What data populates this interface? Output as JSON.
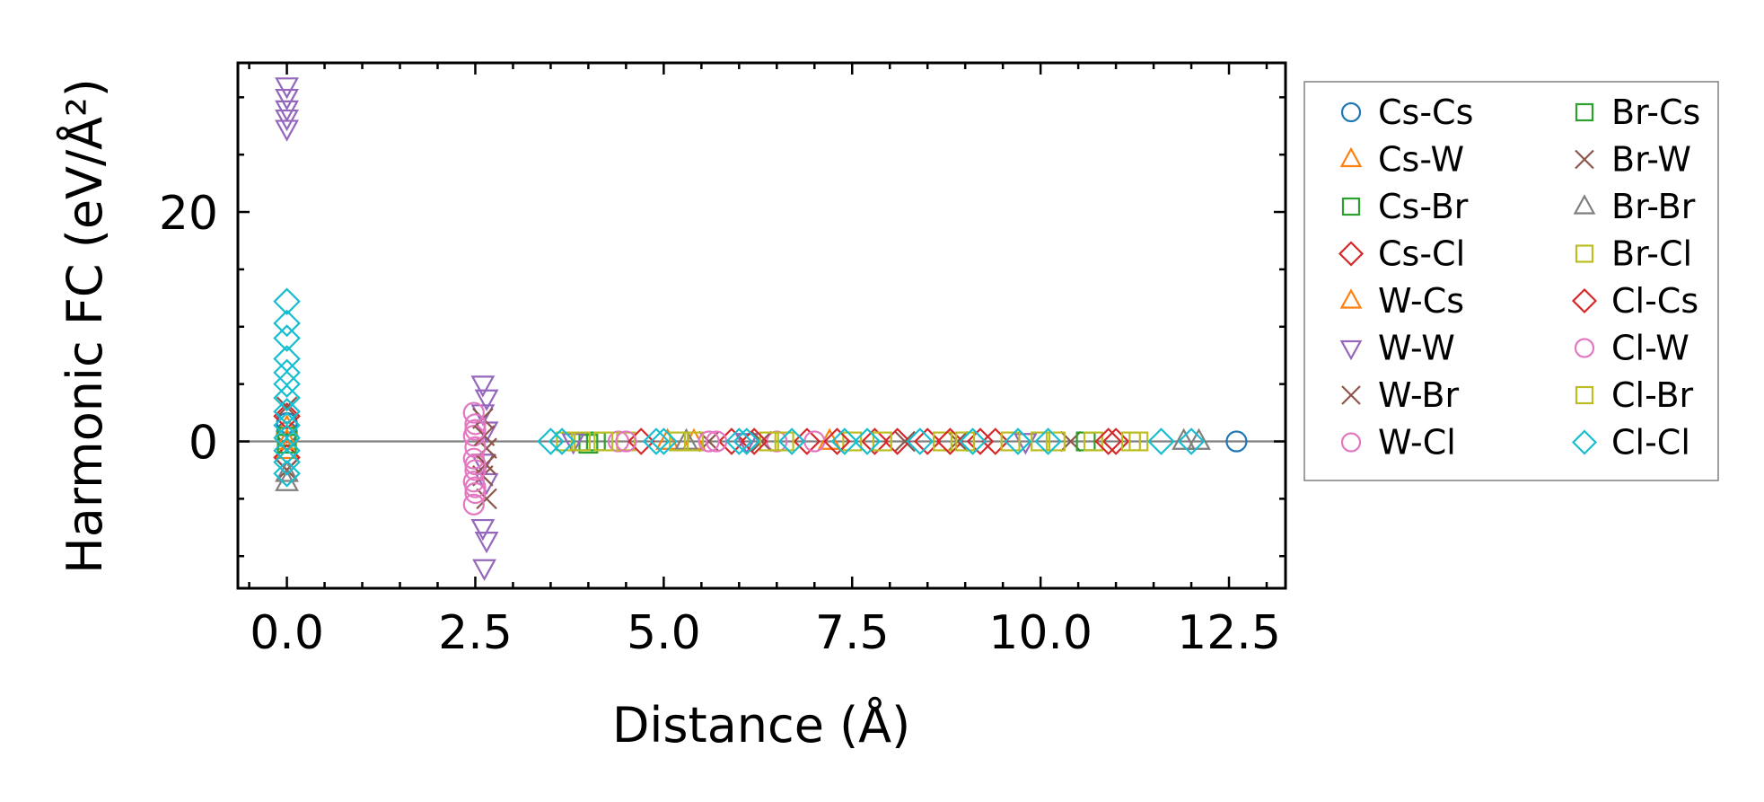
{
  "chart_data": {
    "type": "scatter",
    "title": "",
    "xlabel": "Distance (Å)",
    "ylabel": "Harmonic FC (eV/Å²)",
    "xlim": [
      -0.65,
      13.25
    ],
    "ylim": [
      -12.8,
      33.0
    ],
    "xticks": [
      0.0,
      2.5,
      5.0,
      7.5,
      10.0,
      12.5
    ],
    "xtick_labels": [
      "0.0",
      "2.5",
      "5.0",
      "7.5",
      "10.0",
      "12.5"
    ],
    "yticks": [
      0,
      20
    ],
    "ytick_labels": [
      "0",
      "20"
    ],
    "zero_line": true,
    "legend_position": "outside-right",
    "series": [
      {
        "name": "Cs-Cs",
        "marker": "circle",
        "color": "#1f77b4",
        "points": [
          [
            0.0,
            1.6
          ],
          [
            0.0,
            0.8
          ],
          [
            12.6,
            0.0
          ]
        ]
      },
      {
        "name": "Cs-W",
        "marker": "triangle-up",
        "color": "#ff7f0e",
        "points": [
          [
            0.0,
            1.2
          ],
          [
            0.0,
            -0.8
          ],
          [
            5.05,
            0.0
          ]
        ]
      },
      {
        "name": "Cs-Br",
        "marker": "square",
        "color": "#2ca02c",
        "points": [
          [
            0.0,
            0.4
          ],
          [
            4.0,
            -0.2
          ],
          [
            4.1,
            0.0
          ]
        ]
      },
      {
        "name": "Cs-Cl",
        "marker": "diamond",
        "color": "#d62728",
        "points": [
          [
            0.0,
            2.2
          ],
          [
            0.0,
            -1.4
          ],
          [
            5.9,
            0.0
          ],
          [
            6.9,
            0.0
          ],
          [
            7.8,
            0.0
          ],
          [
            8.5,
            0.0
          ],
          [
            9.4,
            0.0
          ],
          [
            11.0,
            0.0
          ]
        ]
      },
      {
        "name": "W-Cs",
        "marker": "triangle-up",
        "color": "#ff7f0e",
        "points": [
          [
            0.0,
            0.0
          ],
          [
            5.4,
            0.0
          ],
          [
            7.2,
            0.0
          ]
        ]
      },
      {
        "name": "W-W",
        "marker": "triangle-down",
        "color": "#9467bd",
        "points": [
          [
            0.0,
            31.0
          ],
          [
            0.0,
            30.0
          ],
          [
            0.0,
            29.0
          ],
          [
            0.0,
            28.2
          ],
          [
            0.0,
            27.3
          ],
          [
            2.6,
            5.0
          ],
          [
            2.65,
            3.8
          ],
          [
            2.6,
            2.5
          ],
          [
            2.65,
            1.0
          ],
          [
            2.6,
            -1.8
          ],
          [
            2.65,
            -3.5
          ],
          [
            2.6,
            -7.5
          ],
          [
            2.65,
            -8.6
          ],
          [
            2.62,
            -11.0
          ],
          [
            3.8,
            0.0
          ],
          [
            6.1,
            0.0
          ],
          [
            9.8,
            0.0
          ]
        ]
      },
      {
        "name": "W-Br",
        "marker": "cross",
        "color": "#8c564b",
        "points": [
          [
            0.0,
            3.0
          ],
          [
            0.0,
            -2.5
          ],
          [
            2.6,
            2.0
          ],
          [
            2.65,
            -0.6
          ],
          [
            2.6,
            -3.0
          ],
          [
            2.65,
            -5.0
          ],
          [
            5.6,
            0.0
          ],
          [
            8.9,
            0.0
          ],
          [
            10.4,
            0.0
          ]
        ]
      },
      {
        "name": "W-Cl",
        "marker": "circle",
        "color": "#e377c2",
        "points": [
          [
            2.48,
            2.5
          ],
          [
            2.5,
            1.5
          ],
          [
            2.48,
            0.5
          ],
          [
            2.5,
            -0.5
          ],
          [
            2.48,
            -1.5
          ],
          [
            2.5,
            -2.5
          ],
          [
            2.48,
            -3.5
          ],
          [
            2.5,
            -4.5
          ],
          [
            2.48,
            -5.5
          ],
          [
            4.4,
            0.0
          ],
          [
            5.7,
            0.0
          ],
          [
            6.5,
            0.0
          ],
          [
            7.0,
            0.0
          ]
        ]
      },
      {
        "name": "Br-Cs",
        "marker": "square",
        "color": "#2ca02c",
        "points": [
          [
            0.0,
            -0.2
          ],
          [
            3.9,
            0.0
          ],
          [
            10.6,
            0.0
          ]
        ]
      },
      {
        "name": "Br-W",
        "marker": "cross",
        "color": "#8c564b",
        "points": [
          [
            2.62,
            0.5
          ],
          [
            2.64,
            -2.0
          ],
          [
            6.3,
            0.0
          ],
          [
            8.2,
            0.0
          ]
        ]
      },
      {
        "name": "Br-Br",
        "marker": "triangle-up",
        "color": "#7f7f7f",
        "points": [
          [
            0.0,
            -3.6
          ],
          [
            0.0,
            -2.8
          ],
          [
            5.3,
            0.0
          ],
          [
            11.9,
            0.0
          ],
          [
            12.1,
            0.0
          ]
        ]
      },
      {
        "name": "Br-Cl",
        "marker": "square",
        "color": "#bcbd22",
        "points": [
          [
            3.9,
            0.0
          ],
          [
            4.5,
            0.0
          ],
          [
            5.4,
            0.0
          ],
          [
            6.4,
            0.0
          ],
          [
            7.5,
            0.0
          ],
          [
            8.7,
            0.0
          ],
          [
            9.6,
            0.0
          ],
          [
            10.2,
            0.0
          ],
          [
            10.7,
            0.0
          ],
          [
            11.2,
            0.0
          ]
        ]
      },
      {
        "name": "Cl-Cs",
        "marker": "diamond",
        "color": "#d62728",
        "points": [
          [
            4.7,
            0.0
          ],
          [
            6.2,
            0.0
          ],
          [
            7.3,
            0.0
          ],
          [
            8.1,
            0.0
          ],
          [
            8.8,
            0.0
          ],
          [
            9.2,
            0.0
          ],
          [
            10.9,
            0.0
          ]
        ]
      },
      {
        "name": "Cl-W",
        "marker": "circle",
        "color": "#e377c2",
        "points": [
          [
            2.5,
            1.0
          ],
          [
            2.5,
            -2.0
          ],
          [
            2.5,
            -4.0
          ],
          [
            4.5,
            0.0
          ],
          [
            5.6,
            0.0
          ]
        ]
      },
      {
        "name": "Cl-Br",
        "marker": "square",
        "color": "#bcbd22",
        "points": [
          [
            3.7,
            0.0
          ],
          [
            4.2,
            0.0
          ],
          [
            5.2,
            0.0
          ],
          [
            6.6,
            0.0
          ],
          [
            7.9,
            0.0
          ],
          [
            9.0,
            0.0
          ],
          [
            10.0,
            0.0
          ],
          [
            11.3,
            0.0
          ]
        ]
      },
      {
        "name": "Cl-Cl",
        "marker": "diamond",
        "color": "#17becf",
        "points": [
          [
            0.0,
            12.2
          ],
          [
            0.0,
            10.3
          ],
          [
            0.0,
            9.0
          ],
          [
            0.0,
            7.2
          ],
          [
            0.0,
            6.0
          ],
          [
            0.0,
            5.0
          ],
          [
            0.0,
            3.8
          ],
          [
            0.0,
            2.6
          ],
          [
            0.0,
            1.4
          ],
          [
            0.0,
            0.3
          ],
          [
            0.0,
            -0.8
          ],
          [
            0.0,
            -1.8
          ],
          [
            0.0,
            -2.8
          ],
          [
            3.5,
            0.0
          ],
          [
            3.65,
            0.0
          ],
          [
            4.9,
            0.0
          ],
          [
            5.0,
            0.0
          ],
          [
            6.0,
            0.0
          ],
          [
            6.1,
            0.0
          ],
          [
            6.7,
            0.0
          ],
          [
            7.4,
            0.0
          ],
          [
            7.7,
            0.0
          ],
          [
            8.4,
            0.0
          ],
          [
            9.1,
            0.0
          ],
          [
            9.7,
            0.0
          ],
          [
            10.1,
            0.0
          ],
          [
            11.6,
            0.0
          ],
          [
            12.0,
            0.0
          ]
        ]
      }
    ]
  }
}
